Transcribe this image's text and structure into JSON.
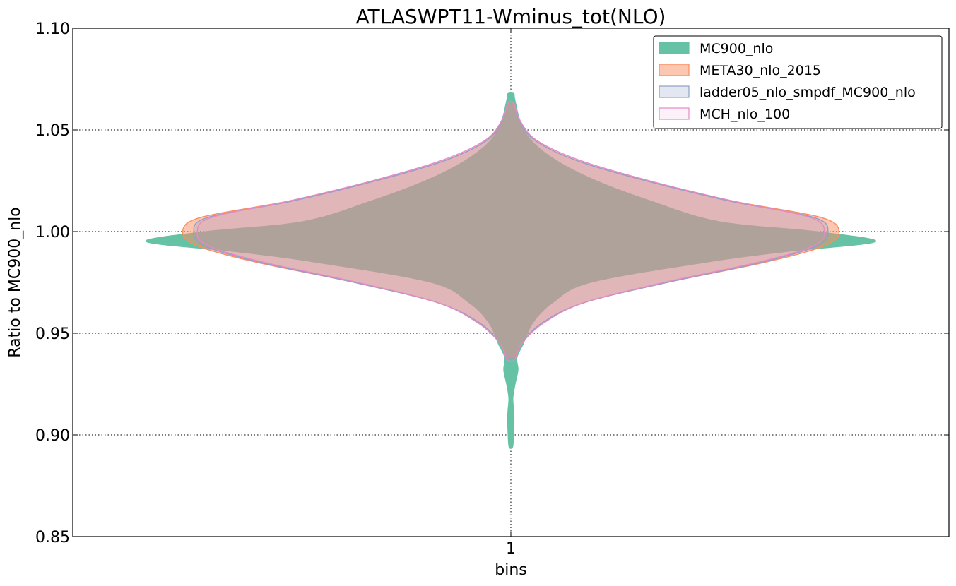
{
  "chart_data": {
    "type": "violin",
    "title": "ATLASWPT11-Wminus_tot(NLO)",
    "xlabel": "bins",
    "ylabel": "Ratio to MC900_nlo",
    "categories": [
      "1"
    ],
    "ylim": [
      0.85,
      1.1
    ],
    "yticks": [
      "0.85",
      "0.90",
      "0.95",
      "1.00",
      "1.05",
      "1.10"
    ],
    "grid": true,
    "legend_position": "top-right",
    "series": [
      {
        "name": "MC900_nlo",
        "fill": "#66c2a5",
        "edge": "#66c2a5",
        "fill_opacity": 1.0,
        "profile": [
          [
            0.894,
            0.005
          ],
          [
            0.9,
            0.008
          ],
          [
            0.91,
            0.009
          ],
          [
            0.918,
            0.006
          ],
          [
            0.925,
            0.012
          ],
          [
            0.932,
            0.02
          ],
          [
            0.938,
            0.017
          ],
          [
            0.945,
            0.035
          ],
          [
            0.955,
            0.06
          ],
          [
            0.965,
            0.115
          ],
          [
            0.975,
            0.22
          ],
          [
            0.985,
            0.54
          ],
          [
            0.99,
            0.75
          ],
          [
            0.995,
            1.0
          ],
          [
            1.0,
            0.84
          ],
          [
            1.005,
            0.57
          ],
          [
            1.015,
            0.385
          ],
          [
            1.025,
            0.235
          ],
          [
            1.035,
            0.125
          ],
          [
            1.045,
            0.055
          ],
          [
            1.055,
            0.025
          ],
          [
            1.062,
            0.015
          ],
          [
            1.066,
            0.01
          ],
          [
            1.068,
            0.008
          ]
        ]
      },
      {
        "name": "META30_nlo_2015",
        "fill": "#fc8d62",
        "edge": "#fc8d62",
        "fill_opacity": 0.5,
        "profile": [
          [
            0.939,
            0.01
          ],
          [
            0.945,
            0.03
          ],
          [
            0.955,
            0.085
          ],
          [
            0.965,
            0.2
          ],
          [
            0.975,
            0.43
          ],
          [
            0.985,
            0.7
          ],
          [
            0.993,
            0.86
          ],
          [
            1.0,
            0.9
          ],
          [
            1.007,
            0.85
          ],
          [
            1.015,
            0.61
          ],
          [
            1.025,
            0.37
          ],
          [
            1.035,
            0.18
          ],
          [
            1.045,
            0.065
          ],
          [
            1.055,
            0.022
          ],
          [
            1.062,
            0.008
          ]
        ]
      },
      {
        "name": "ladder05_nlo_smpdf_MC900_nlo",
        "fill": "#8da0cb",
        "edge": "#8da0cb",
        "fill_opacity": 0.25,
        "profile": [
          [
            0.938,
            0.01
          ],
          [
            0.945,
            0.03
          ],
          [
            0.955,
            0.085
          ],
          [
            0.965,
            0.2
          ],
          [
            0.975,
            0.43
          ],
          [
            0.985,
            0.69
          ],
          [
            0.993,
            0.84
          ],
          [
            1.0,
            0.87
          ],
          [
            1.007,
            0.83
          ],
          [
            1.015,
            0.6
          ],
          [
            1.025,
            0.37
          ],
          [
            1.035,
            0.18
          ],
          [
            1.045,
            0.065
          ],
          [
            1.055,
            0.022
          ],
          [
            1.063,
            0.008
          ]
        ]
      },
      {
        "name": "MCH_nlo_100",
        "fill": "#e78ac3",
        "edge": "#e78ac3",
        "fill_opacity": 0.12,
        "profile": [
          [
            0.937,
            0.01
          ],
          [
            0.945,
            0.03
          ],
          [
            0.955,
            0.09
          ],
          [
            0.965,
            0.2
          ],
          [
            0.975,
            0.42
          ],
          [
            0.985,
            0.68
          ],
          [
            0.993,
            0.83
          ],
          [
            1.0,
            0.86
          ],
          [
            1.007,
            0.82
          ],
          [
            1.015,
            0.61
          ],
          [
            1.025,
            0.38
          ],
          [
            1.035,
            0.19
          ],
          [
            1.045,
            0.07
          ],
          [
            1.055,
            0.024
          ],
          [
            1.063,
            0.008
          ]
        ]
      }
    ]
  }
}
